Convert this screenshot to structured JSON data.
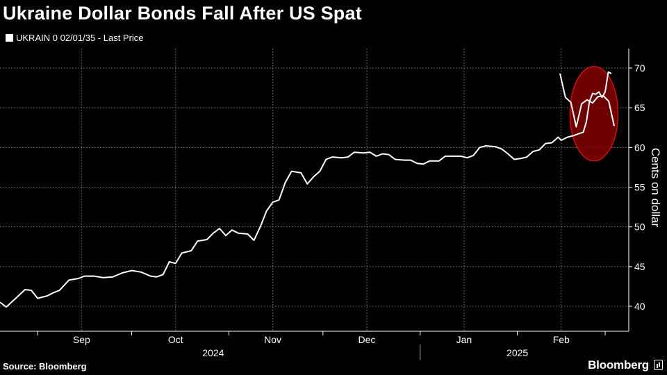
{
  "header": {
    "title": "Ukraine Dollar Bonds Fall After US Spat"
  },
  "legend": {
    "series_label": "UKRAIN 0 02/01/35 - Last Price"
  },
  "footer": {
    "source": "Source: Bloomberg",
    "brand": "Bloomberg"
  },
  "colors": {
    "background": "#000000",
    "line": "#ffffff",
    "highlight_fill": "#8b0000",
    "highlight_stroke": "#d01010",
    "grid": "#808080"
  },
  "chart_data": {
    "type": "line",
    "title": "Ukraine Dollar Bonds Fall After US Spat",
    "ylabel": "Cents on dollar",
    "xlabel": "",
    "ylim": [
      37,
      71
    ],
    "yticks": [
      40,
      45,
      50,
      55,
      60,
      65,
      70
    ],
    "xlim": [
      "2024-08-20",
      "2025-03-03"
    ],
    "month_ticks": [
      {
        "label": "Sep",
        "date": "2024-09-15"
      },
      {
        "label": "Oct",
        "date": "2024-10-15"
      },
      {
        "label": "Nov",
        "date": "2024-11-15"
      },
      {
        "label": "Dec",
        "date": "2024-12-15"
      },
      {
        "label": "Jan",
        "date": "2025-01-15"
      },
      {
        "label": "Feb",
        "date": "2025-02-15"
      }
    ],
    "month_boundaries": [
      "2024-09-01",
      "2024-10-01",
      "2024-11-01",
      "2024-12-01",
      "2025-01-01",
      "2025-02-01",
      "2025-03-01"
    ],
    "year_labels": [
      {
        "label": "2024",
        "date": "2024-10-27"
      },
      {
        "label": "2025",
        "date": "2025-02-01"
      }
    ],
    "year_boundary": "2025-01-01",
    "grid": true,
    "legend_position": "top-left",
    "annotation": {
      "type": "ellipse",
      "from": "2025-02-20",
      "to": "2025-03-02",
      "y_from": 58.3,
      "y_to": 70.2
    },
    "series": [
      {
        "name": "UKRAIN 0 02/01/35 - Last Price",
        "points": [
          [
            "2024-08-20",
            40.5
          ],
          [
            "2024-08-22",
            39.9
          ],
          [
            "2024-08-25",
            41.0
          ],
          [
            "2024-08-28",
            42.1
          ],
          [
            "2024-08-30",
            42.0
          ],
          [
            "2024-09-01",
            41.0
          ],
          [
            "2024-09-04",
            41.3
          ],
          [
            "2024-09-06",
            41.7
          ],
          [
            "2024-09-08",
            42.0
          ],
          [
            "2024-09-11",
            43.3
          ],
          [
            "2024-09-14",
            43.5
          ],
          [
            "2024-09-16",
            43.8
          ],
          [
            "2024-09-19",
            43.8
          ],
          [
            "2024-09-22",
            43.6
          ],
          [
            "2024-09-25",
            43.7
          ],
          [
            "2024-09-28",
            44.2
          ],
          [
            "2024-10-01",
            44.5
          ],
          [
            "2024-10-04",
            44.3
          ],
          [
            "2024-10-07",
            43.8
          ],
          [
            "2024-10-09",
            43.7
          ],
          [
            "2024-10-11",
            44.0
          ],
          [
            "2024-10-13",
            45.6
          ],
          [
            "2024-10-15",
            45.4
          ],
          [
            "2024-10-17",
            46.7
          ],
          [
            "2024-10-20",
            47.0
          ],
          [
            "2024-10-22",
            48.2
          ],
          [
            "2024-10-25",
            48.4
          ],
          [
            "2024-10-27",
            49.2
          ],
          [
            "2024-10-29",
            49.8
          ],
          [
            "2024-10-31",
            48.9
          ],
          [
            "2024-11-02",
            49.6
          ],
          [
            "2024-11-04",
            49.2
          ],
          [
            "2024-11-07",
            49.1
          ],
          [
            "2024-11-09",
            48.3
          ],
          [
            "2024-11-11",
            50.0
          ],
          [
            "2024-11-13",
            52.0
          ],
          [
            "2024-11-15",
            53.1
          ],
          [
            "2024-11-17",
            53.4
          ],
          [
            "2024-11-19",
            55.6
          ],
          [
            "2024-11-21",
            57.0
          ],
          [
            "2024-11-24",
            56.8
          ],
          [
            "2024-11-26",
            55.4
          ],
          [
            "2024-11-28",
            56.3
          ],
          [
            "2024-11-30",
            57.0
          ],
          [
            "2024-12-02",
            58.5
          ],
          [
            "2024-12-04",
            58.8
          ],
          [
            "2024-12-07",
            58.7
          ],
          [
            "2024-12-09",
            58.8
          ],
          [
            "2024-12-11",
            59.4
          ],
          [
            "2024-12-14",
            59.3
          ],
          [
            "2024-12-16",
            59.4
          ],
          [
            "2024-12-18",
            58.9
          ],
          [
            "2024-12-20",
            59.2
          ],
          [
            "2024-12-22",
            59.1
          ],
          [
            "2024-12-24",
            58.5
          ],
          [
            "2024-12-27",
            58.4
          ],
          [
            "2024-12-29",
            58.4
          ],
          [
            "2024-12-31",
            58.0
          ],
          [
            "2025-01-02",
            57.9
          ],
          [
            "2025-01-04",
            58.3
          ],
          [
            "2025-01-07",
            58.3
          ],
          [
            "2025-01-09",
            58.9
          ],
          [
            "2025-01-12",
            58.9
          ],
          [
            "2025-01-14",
            58.9
          ],
          [
            "2025-01-16",
            58.7
          ],
          [
            "2025-01-18",
            59.0
          ],
          [
            "2025-01-20",
            60.0
          ],
          [
            "2025-01-22",
            60.2
          ],
          [
            "2025-01-25",
            60.1
          ],
          [
            "2025-01-27",
            59.8
          ],
          [
            "2025-01-29",
            59.2
          ],
          [
            "2025-01-31",
            58.5
          ],
          [
            "2025-02-02",
            58.6
          ],
          [
            "2025-02-04",
            58.8
          ],
          [
            "2025-02-06",
            59.5
          ],
          [
            "2025-02-08",
            59.7
          ],
          [
            "2025-02-10",
            60.5
          ],
          [
            "2025-02-12",
            60.6
          ],
          [
            "2025-02-14",
            61.3
          ],
          [
            "2025-02-15",
            60.9
          ],
          [
            "2025-02-17",
            61.3
          ],
          [
            "2025-02-19",
            61.5
          ],
          [
            "2025-02-21",
            61.8
          ],
          [
            "2025-02-22",
            61.9
          ],
          [
            "2025-02-23",
            63.2
          ],
          [
            "2025-02-24",
            65.8
          ],
          [
            "2025-02-25",
            66.8
          ],
          [
            "2025-02-26",
            66.7
          ],
          [
            "2025-02-27",
            67.0
          ],
          [
            "2025-02-28",
            66.3
          ],
          [
            "2025-03-01",
            67.0
          ],
          [
            "2025-03-02",
            69.5
          ],
          [
            "2025-03-03",
            69.3
          ]
        ]
      }
    ]
  }
}
